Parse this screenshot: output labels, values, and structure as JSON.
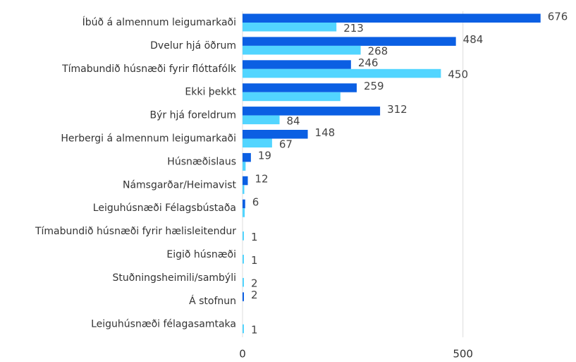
{
  "chart_data": {
    "type": "bar",
    "orientation": "horizontal",
    "categories": [
      "Íbúð á almennum leigumarkaði",
      "Dvelur hjá öðrum",
      "Tímabundið húsnæði fyrir flóttafólk",
      "Ekki þekkt",
      "Býr hjá foreldrum",
      "Herbergi á almennum leigumarkaði",
      "Húsnæðislaus",
      "Námsgarðar/Heimavist",
      "Leiguhúsnæði Félagsbústaða",
      "Tímabundið húsnæði fyrir hælisleitendur",
      "Eigið húsnæði",
      "Stuðningsheimili/sambýli",
      "Á stofnun",
      "Leiguhúsnæði félagasamtaka"
    ],
    "series": [
      {
        "color": "#0b5fe3",
        "values": [
          676,
          484,
          246,
          259,
          312,
          148,
          19,
          12,
          6,
          null,
          null,
          null,
          2,
          null
        ],
        "value_labels": [
          "676",
          "484",
          "246",
          "259",
          "312",
          "148",
          "19",
          "12",
          "6",
          null,
          null,
          null,
          "2",
          null
        ]
      },
      {
        "color": "#52d5ff",
        "values": [
          213,
          268,
          450,
          222,
          84,
          67,
          7,
          4,
          5,
          1,
          1,
          2,
          null,
          1
        ],
        "value_labels": [
          "213",
          "268",
          "450",
          null,
          "84",
          "67",
          null,
          null,
          null,
          "1",
          "1",
          "2",
          null,
          "1"
        ]
      }
    ],
    "xlim": [
      0,
      750
    ],
    "xticks": [
      0,
      500
    ],
    "grid": true
  }
}
